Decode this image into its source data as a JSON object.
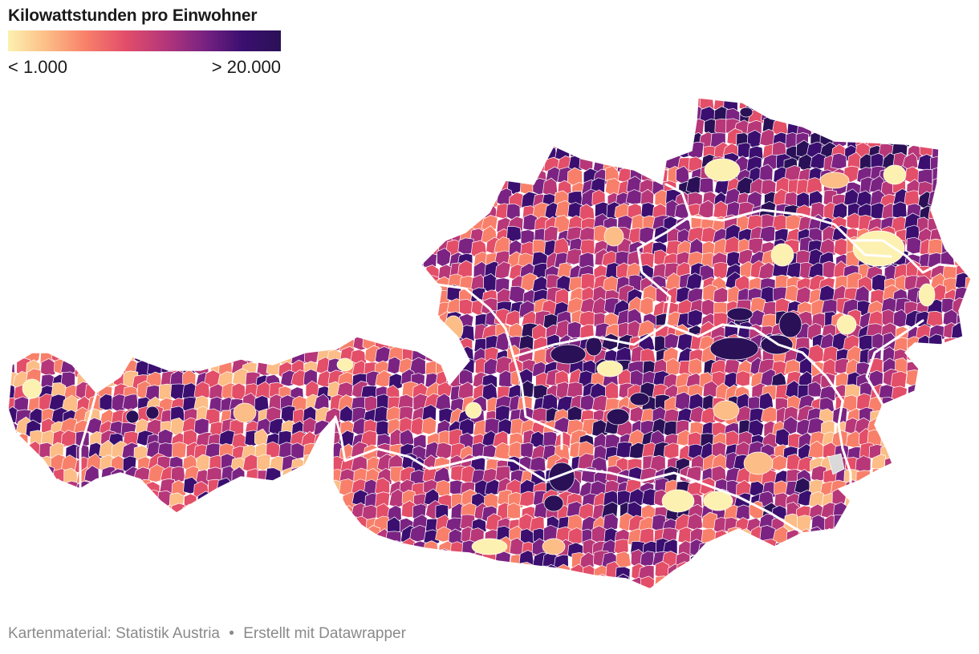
{
  "legend": {
    "title": "Kilowattstunden pro Einwohner",
    "min_label": "< 1.000",
    "max_label": "> 20.000",
    "colors": [
      "#fcf1b0",
      "#fcbd86",
      "#f8806a",
      "#e34e69",
      "#b73779",
      "#7b2382",
      "#3b0f70",
      "#2a1157"
    ]
  },
  "footer": {
    "source": "Kartenmaterial: Statistik Austria",
    "separator": "•",
    "credit": "Erstellt mit Datawrapper"
  },
  "map": {
    "region": "Österreich",
    "colors": {
      "background": "#ffffff",
      "border": "#ffffff",
      "no_data": "#d9d9d9"
    }
  }
}
